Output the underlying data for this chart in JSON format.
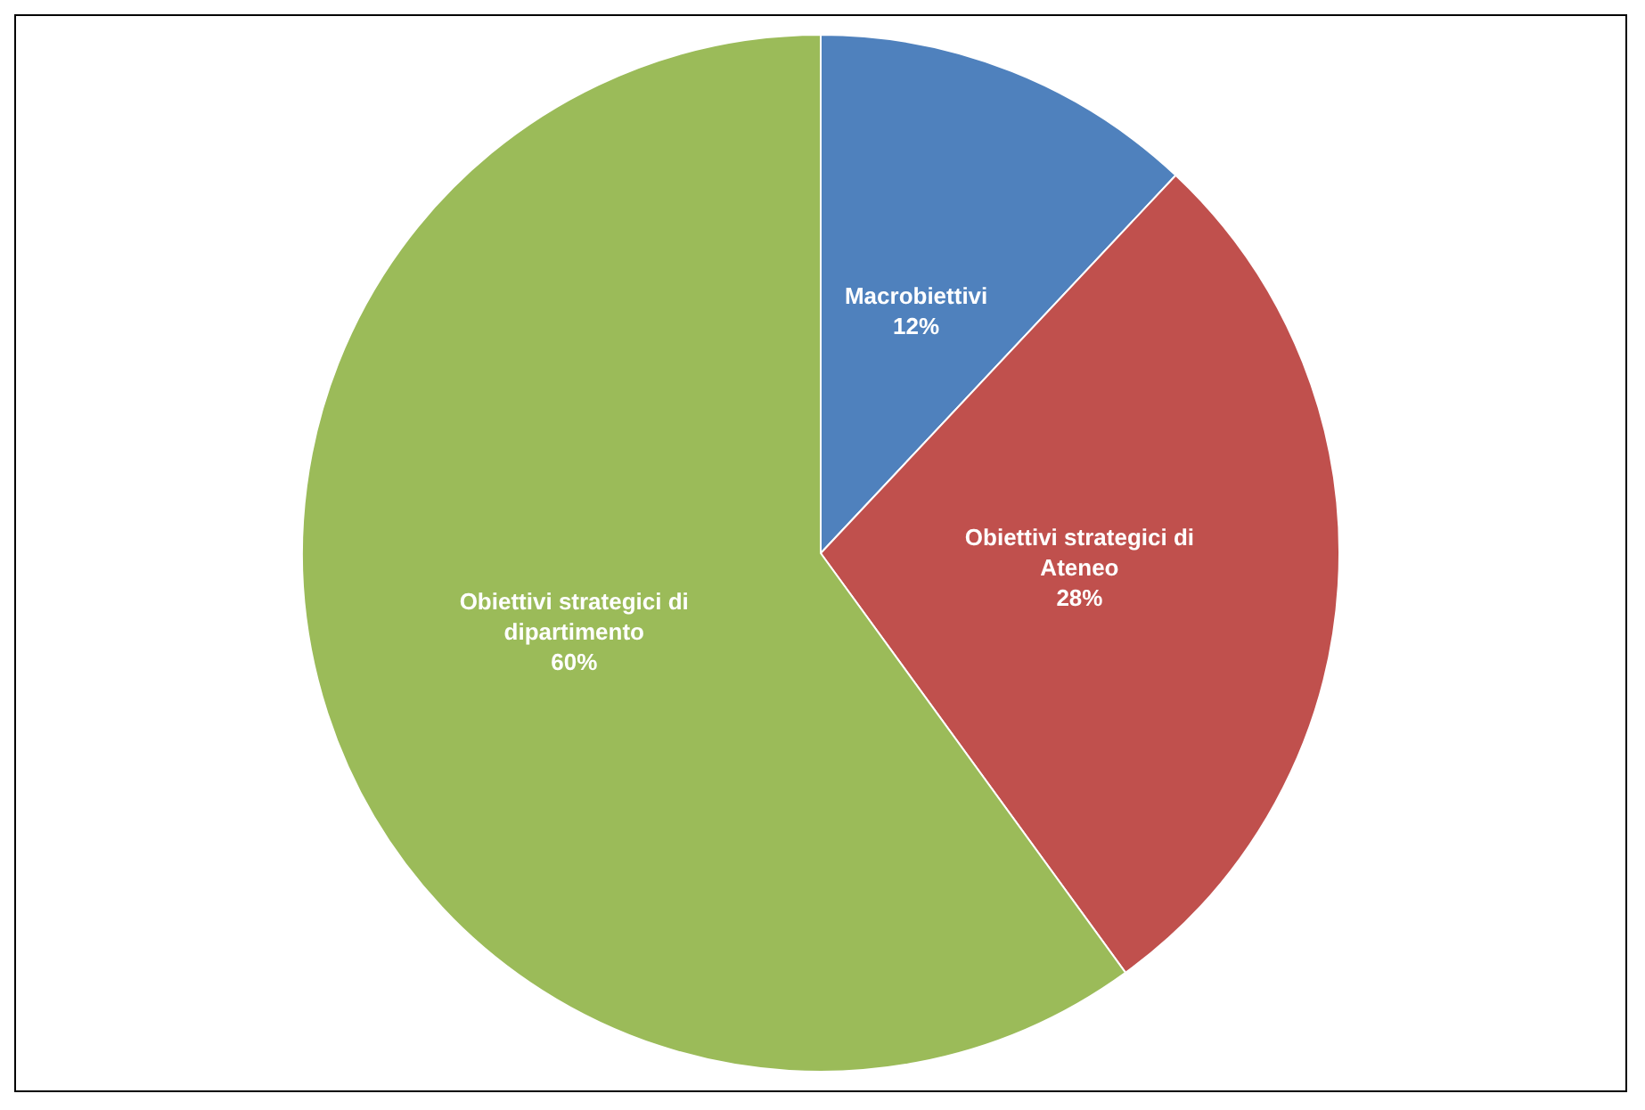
{
  "chart_data": {
    "type": "pie",
    "categories": [
      "Macrobiettivi",
      "Obiettivi strategici di Ateneo",
      "Obiettivi strategici di dipartimento"
    ],
    "values": [
      12,
      28,
      60
    ],
    "colors": [
      "#4f81bd",
      "#c0504d",
      "#9bbb59"
    ],
    "value_labels": [
      "12%",
      "28%",
      "60%"
    ],
    "legend": false
  }
}
